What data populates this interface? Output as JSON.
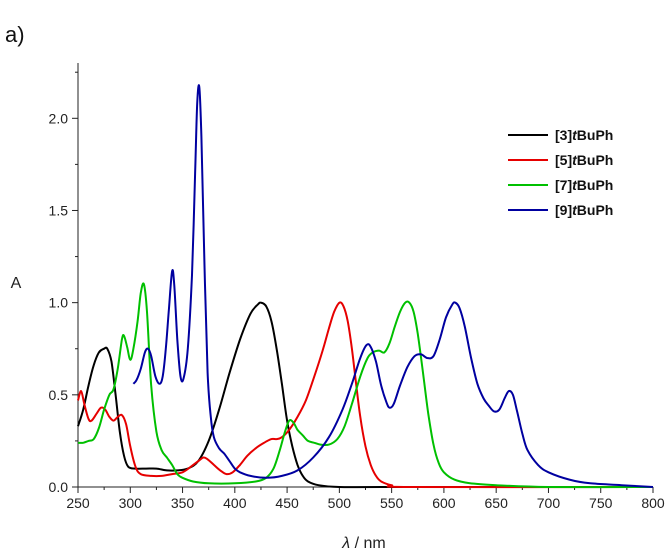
{
  "panel_label": "a)",
  "chart_data": {
    "type": "line",
    "title": "",
    "xlabel": "λ / nm",
    "ylabel": "A",
    "xlim": [
      250,
      800
    ],
    "ylim": [
      0,
      2.3
    ],
    "x_ticks": [
      250,
      300,
      350,
      400,
      450,
      500,
      550,
      600,
      650,
      700,
      750,
      800
    ],
    "x_tick_labels": [
      "250",
      "300",
      "350",
      "400",
      "450",
      "500",
      "550",
      "600",
      "650",
      "700",
      "750",
      "800"
    ],
    "y_ticks": [
      0.0,
      0.5,
      1.0,
      1.5,
      2.0
    ],
    "y_tick_labels": [
      "0.0",
      "0.5",
      "1.0",
      "1.5",
      "2.0"
    ],
    "grid": false,
    "legend_position": "top-right",
    "series": [
      {
        "name": "[3]tBuPh",
        "label_prefix": "[3]",
        "label_italic": "t",
        "label_suffix": "BuPh",
        "color": "#000000",
        "points": [
          [
            250,
            0.33
          ],
          [
            255,
            0.42
          ],
          [
            260,
            0.55
          ],
          [
            265,
            0.66
          ],
          [
            270,
            0.73
          ],
          [
            275,
            0.75
          ],
          [
            278,
            0.75
          ],
          [
            282,
            0.68
          ],
          [
            286,
            0.5
          ],
          [
            290,
            0.3
          ],
          [
            294,
            0.17
          ],
          [
            298,
            0.11
          ],
          [
            305,
            0.1
          ],
          [
            315,
            0.1
          ],
          [
            325,
            0.1
          ],
          [
            335,
            0.09
          ],
          [
            345,
            0.09
          ],
          [
            355,
            0.1
          ],
          [
            365,
            0.14
          ],
          [
            375,
            0.25
          ],
          [
            385,
            0.42
          ],
          [
            395,
            0.62
          ],
          [
            405,
            0.8
          ],
          [
            415,
            0.94
          ],
          [
            422,
            0.99
          ],
          [
            425,
            1.0
          ],
          [
            430,
            0.98
          ],
          [
            435,
            0.9
          ],
          [
            440,
            0.75
          ],
          [
            445,
            0.56
          ],
          [
            450,
            0.36
          ],
          [
            455,
            0.22
          ],
          [
            460,
            0.12
          ],
          [
            465,
            0.06
          ],
          [
            470,
            0.03
          ],
          [
            480,
            0.01
          ],
          [
            500,
            0.0
          ],
          [
            550,
            0.0
          ],
          [
            800,
            0.0
          ]
        ]
      },
      {
        "name": "[5]tBuPh",
        "label_prefix": "[5]",
        "label_italic": "t",
        "label_suffix": "BuPh",
        "color": "#e60000",
        "points": [
          [
            250,
            0.47
          ],
          [
            253,
            0.52
          ],
          [
            256,
            0.45
          ],
          [
            260,
            0.37
          ],
          [
            263,
            0.36
          ],
          [
            268,
            0.4
          ],
          [
            272,
            0.43
          ],
          [
            276,
            0.42
          ],
          [
            280,
            0.38
          ],
          [
            284,
            0.36
          ],
          [
            288,
            0.38
          ],
          [
            292,
            0.39
          ],
          [
            296,
            0.34
          ],
          [
            300,
            0.22
          ],
          [
            305,
            0.11
          ],
          [
            310,
            0.07
          ],
          [
            320,
            0.06
          ],
          [
            330,
            0.06
          ],
          [
            340,
            0.07
          ],
          [
            350,
            0.08
          ],
          [
            358,
            0.11
          ],
          [
            365,
            0.14
          ],
          [
            370,
            0.16
          ],
          [
            374,
            0.15
          ],
          [
            380,
            0.12
          ],
          [
            386,
            0.09
          ],
          [
            392,
            0.07
          ],
          [
            398,
            0.08
          ],
          [
            405,
            0.12
          ],
          [
            412,
            0.17
          ],
          [
            420,
            0.21
          ],
          [
            428,
            0.24
          ],
          [
            435,
            0.26
          ],
          [
            440,
            0.26
          ],
          [
            445,
            0.27
          ],
          [
            452,
            0.31
          ],
          [
            460,
            0.38
          ],
          [
            468,
            0.47
          ],
          [
            476,
            0.6
          ],
          [
            484,
            0.74
          ],
          [
            490,
            0.86
          ],
          [
            495,
            0.95
          ],
          [
            500,
            1.0
          ],
          [
            504,
            0.98
          ],
          [
            508,
            0.9
          ],
          [
            512,
            0.75
          ],
          [
            516,
            0.56
          ],
          [
            520,
            0.38
          ],
          [
            525,
            0.22
          ],
          [
            530,
            0.12
          ],
          [
            535,
            0.06
          ],
          [
            540,
            0.03
          ],
          [
            550,
            0.01
          ],
          [
            570,
            0.0
          ],
          [
            800,
            0.0
          ]
        ]
      },
      {
        "name": "[7]tBuPh",
        "label_prefix": "[7]",
        "label_italic": "t",
        "label_suffix": "BuPh",
        "color": "#00c000",
        "points": [
          [
            250,
            0.24
          ],
          [
            255,
            0.24
          ],
          [
            260,
            0.25
          ],
          [
            265,
            0.26
          ],
          [
            270,
            0.32
          ],
          [
            275,
            0.42
          ],
          [
            280,
            0.5
          ],
          [
            284,
            0.53
          ],
          [
            288,
            0.64
          ],
          [
            292,
            0.8
          ],
          [
            294,
            0.82
          ],
          [
            297,
            0.76
          ],
          [
            300,
            0.69
          ],
          [
            303,
            0.75
          ],
          [
            307,
            0.9
          ],
          [
            310,
            1.05
          ],
          [
            313,
            1.1
          ],
          [
            316,
            0.95
          ],
          [
            320,
            0.55
          ],
          [
            325,
            0.3
          ],
          [
            330,
            0.2
          ],
          [
            335,
            0.16
          ],
          [
            340,
            0.12
          ],
          [
            345,
            0.07
          ],
          [
            350,
            0.05
          ],
          [
            360,
            0.03
          ],
          [
            375,
            0.02
          ],
          [
            400,
            0.02
          ],
          [
            420,
            0.03
          ],
          [
            430,
            0.05
          ],
          [
            437,
            0.1
          ],
          [
            443,
            0.2
          ],
          [
            448,
            0.3
          ],
          [
            452,
            0.36
          ],
          [
            456,
            0.35
          ],
          [
            460,
            0.31
          ],
          [
            465,
            0.28
          ],
          [
            470,
            0.25
          ],
          [
            476,
            0.24
          ],
          [
            482,
            0.23
          ],
          [
            490,
            0.23
          ],
          [
            498,
            0.26
          ],
          [
            505,
            0.33
          ],
          [
            512,
            0.45
          ],
          [
            520,
            0.6
          ],
          [
            527,
            0.7
          ],
          [
            532,
            0.73
          ],
          [
            538,
            0.74
          ],
          [
            543,
            0.73
          ],
          [
            548,
            0.78
          ],
          [
            553,
            0.87
          ],
          [
            558,
            0.95
          ],
          [
            563,
            1.0
          ],
          [
            567,
            1.0
          ],
          [
            571,
            0.95
          ],
          [
            575,
            0.83
          ],
          [
            580,
            0.62
          ],
          [
            585,
            0.4
          ],
          [
            590,
            0.23
          ],
          [
            595,
            0.13
          ],
          [
            600,
            0.08
          ],
          [
            610,
            0.04
          ],
          [
            625,
            0.02
          ],
          [
            650,
            0.01
          ],
          [
            700,
            0.0
          ],
          [
            800,
            0.0
          ]
        ]
      },
      {
        "name": "[9]tBuPh",
        "label_prefix": "[9]",
        "label_italic": "t",
        "label_suffix": "BuPh",
        "color": "#0000a0",
        "points": [
          [
            303,
            0.56
          ],
          [
            306,
            0.58
          ],
          [
            310,
            0.64
          ],
          [
            314,
            0.73
          ],
          [
            317,
            0.75
          ],
          [
            320,
            0.71
          ],
          [
            324,
            0.6
          ],
          [
            328,
            0.56
          ],
          [
            331,
            0.6
          ],
          [
            334,
            0.75
          ],
          [
            337,
            0.97
          ],
          [
            340,
            1.17
          ],
          [
            342,
            1.1
          ],
          [
            345,
            0.8
          ],
          [
            348,
            0.6
          ],
          [
            351,
            0.59
          ],
          [
            355,
            0.75
          ],
          [
            359,
            1.15
          ],
          [
            362,
            1.7
          ],
          [
            364,
            2.08
          ],
          [
            366,
            2.17
          ],
          [
            368,
            1.9
          ],
          [
            371,
            1.2
          ],
          [
            374,
            0.62
          ],
          [
            377,
            0.38
          ],
          [
            380,
            0.27
          ],
          [
            385,
            0.21
          ],
          [
            390,
            0.18
          ],
          [
            395,
            0.14
          ],
          [
            400,
            0.1
          ],
          [
            405,
            0.08
          ],
          [
            415,
            0.06
          ],
          [
            430,
            0.05
          ],
          [
            445,
            0.06
          ],
          [
            460,
            0.09
          ],
          [
            475,
            0.16
          ],
          [
            490,
            0.27
          ],
          [
            503,
            0.42
          ],
          [
            512,
            0.56
          ],
          [
            520,
            0.7
          ],
          [
            526,
            0.77
          ],
          [
            530,
            0.76
          ],
          [
            535,
            0.68
          ],
          [
            540,
            0.55
          ],
          [
            545,
            0.46
          ],
          [
            548,
            0.43
          ],
          [
            552,
            0.45
          ],
          [
            558,
            0.55
          ],
          [
            565,
            0.65
          ],
          [
            572,
            0.71
          ],
          [
            578,
            0.72
          ],
          [
            584,
            0.7
          ],
          [
            590,
            0.71
          ],
          [
            596,
            0.8
          ],
          [
            602,
            0.92
          ],
          [
            608,
            0.99
          ],
          [
            611,
            1.0
          ],
          [
            615,
            0.97
          ],
          [
            620,
            0.87
          ],
          [
            626,
            0.7
          ],
          [
            632,
            0.56
          ],
          [
            638,
            0.48
          ],
          [
            643,
            0.44
          ],
          [
            648,
            0.41
          ],
          [
            653,
            0.42
          ],
          [
            658,
            0.48
          ],
          [
            662,
            0.52
          ],
          [
            666,
            0.5
          ],
          [
            670,
            0.41
          ],
          [
            675,
            0.29
          ],
          [
            680,
            0.2
          ],
          [
            690,
            0.12
          ],
          [
            700,
            0.08
          ],
          [
            720,
            0.04
          ],
          [
            740,
            0.02
          ],
          [
            770,
            0.01
          ],
          [
            800,
            0.0
          ]
        ]
      }
    ]
  }
}
